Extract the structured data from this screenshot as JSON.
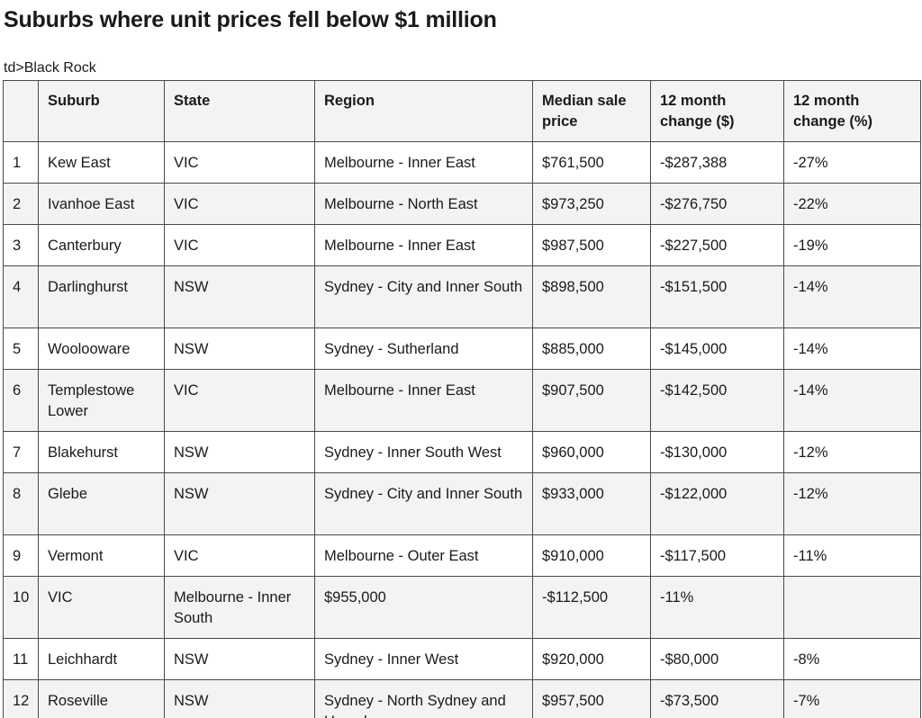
{
  "heading": "Suburbs where unit prices fell below $1 million",
  "stray_text": "td>Black Rock",
  "table": {
    "headers": [
      "",
      "Suburb",
      "State",
      "Region",
      "Median sale price",
      "12 month change ($)",
      "12 month change (%)"
    ],
    "rows": [
      [
        "1",
        "Kew East",
        "VIC",
        "Melbourne - Inner East",
        "$761,500",
        "-$287,388",
        "-27%"
      ],
      [
        "2",
        "Ivanhoe East",
        "VIC",
        "Melbourne - North East",
        "$973,250",
        "-$276,750",
        "-22%"
      ],
      [
        "3",
        "Canterbury",
        "VIC",
        "Melbourne - Inner East",
        "$987,500",
        "-$227,500",
        "-19%"
      ],
      [
        "4",
        "Darlinghurst",
        "NSW",
        "Sydney - City and Inner South",
        "$898,500",
        "-$151,500",
        "-14%"
      ],
      [
        "5",
        "Woolooware",
        "NSW",
        "Sydney - Sutherland",
        "$885,000",
        "-$145,000",
        "-14%"
      ],
      [
        "6",
        "Templestowe Lower",
        "VIC",
        "Melbourne - Inner East",
        "$907,500",
        "-$142,500",
        "-14%"
      ],
      [
        "7",
        "Blakehurst",
        "NSW",
        "Sydney - Inner South West",
        "$960,000",
        "-$130,000",
        "-12%"
      ],
      [
        "8",
        "Glebe",
        "NSW",
        "Sydney - City and Inner South",
        "$933,000",
        "-$122,000",
        "-12%"
      ],
      [
        "9",
        "Vermont",
        "VIC",
        "Melbourne - Outer East",
        "$910,000",
        "-$117,500",
        "-11%"
      ],
      [
        "10",
        "VIC",
        "Melbourne - Inner South",
        "$955,000",
        "-$112,500",
        "-11%",
        ""
      ],
      [
        "11",
        "Leichhardt",
        "NSW",
        "Sydney - Inner West",
        "$920,000",
        "-$80,000",
        "-8%"
      ],
      [
        "12",
        "Roseville",
        "NSW",
        "Sydney - North Sydney and Hornsby",
        "$957,500",
        "-$73,500",
        "-7%"
      ]
    ]
  }
}
